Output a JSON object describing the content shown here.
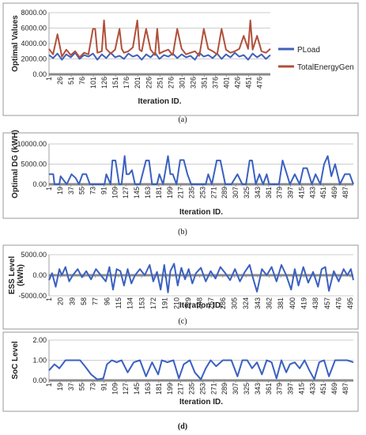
{
  "chart_data": [
    {
      "type": "line",
      "panel": "(a)",
      "caption": "(a)",
      "ylabel": "Optimal Values",
      "xlabel": "Iteration ID.",
      "ylim": [
        0,
        8000
      ],
      "yticks": [
        0,
        2000,
        4000,
        6000,
        8000
      ],
      "ytick_labels": [
        "0.00",
        "2000.00",
        "4000.00",
        "6000.00",
        "8000.00"
      ],
      "xlim": [
        1,
        500
      ],
      "xticks": [
        1,
        26,
        51,
        76,
        101,
        126,
        151,
        176,
        201,
        226,
        251,
        276,
        301,
        326,
        351,
        376,
        401,
        426,
        451,
        476
      ],
      "grid": true,
      "legend_position": "right",
      "series": [
        {
          "name": "PLoad",
          "color": "#4060b8",
          "x": [
            1,
            10,
            20,
            30,
            40,
            50,
            60,
            70,
            80,
            90,
            100,
            110,
            120,
            130,
            140,
            150,
            160,
            170,
            180,
            190,
            200,
            210,
            220,
            230,
            240,
            250,
            260,
            270,
            280,
            290,
            300,
            310,
            320,
            330,
            340,
            350,
            360,
            370,
            380,
            390,
            400,
            410,
            420,
            430,
            440,
            450,
            460,
            470,
            480,
            490,
            500
          ],
          "values": [
            2500,
            2100,
            2700,
            1900,
            2600,
            2200,
            2800,
            2000,
            2500,
            2300,
            2700,
            1900,
            2600,
            2100,
            2800,
            2200,
            2400,
            2000,
            2700,
            2300,
            2500,
            1900,
            2600,
            2200,
            2800,
            2000,
            2500,
            2300,
            2700,
            2100,
            2600,
            2200,
            2400,
            1900,
            2800,
            2300,
            2500,
            2100,
            2700,
            2000,
            2600,
            2200,
            2800,
            2300,
            2500,
            1900,
            2700,
            2200,
            2600,
            2000,
            2500
          ]
        },
        {
          "name": "TotalEnergyGen",
          "color": "#b0503a",
          "x": [
            1,
            10,
            20,
            30,
            40,
            50,
            60,
            70,
            80,
            90,
            100,
            105,
            110,
            120,
            125,
            130,
            140,
            150,
            160,
            165,
            170,
            180,
            190,
            200,
            205,
            210,
            220,
            230,
            240,
            245,
            250,
            260,
            270,
            280,
            290,
            300,
            310,
            320,
            330,
            340,
            350,
            360,
            370,
            380,
            390,
            400,
            410,
            420,
            430,
            440,
            450,
            455,
            460,
            470,
            480,
            490,
            500
          ],
          "values": [
            3300,
            2600,
            5200,
            2300,
            3200,
            2500,
            3000,
            2200,
            2800,
            2600,
            5900,
            5900,
            2800,
            3000,
            7000,
            3300,
            2700,
            3200,
            5900,
            3300,
            2800,
            3000,
            3500,
            7000,
            3200,
            3000,
            5900,
            3200,
            2500,
            5900,
            2700,
            3000,
            3200,
            2500,
            5900,
            3300,
            2600,
            2800,
            3000,
            2400,
            5900,
            3300,
            3000,
            2600,
            5900,
            3200,
            2800,
            3000,
            3300,
            5000,
            3300,
            7000,
            3200,
            5000,
            3000,
            2800,
            3300
          ]
        }
      ]
    },
    {
      "type": "line",
      "panel": "(b)",
      "caption": "(b)",
      "ylabel": "Optimal DG (kWH)",
      "xlabel": "Iteration ID.",
      "ylim": [
        0,
        10000
      ],
      "yticks": [
        0,
        5000,
        10000
      ],
      "ytick_labels": [
        "0.00",
        "5000.00",
        "10000.00"
      ],
      "xlim": [
        1,
        500
      ],
      "xticks": [
        1,
        19,
        37,
        55,
        73,
        91,
        109,
        127,
        145,
        163,
        181,
        199,
        217,
        235,
        253,
        271,
        289,
        307,
        325,
        343,
        361,
        379,
        397,
        415,
        433,
        451,
        469,
        487
      ],
      "grid": true,
      "series": [
        {
          "name": "",
          "color": "#3a60c0",
          "x": [
            1,
            8,
            10,
            18,
            20,
            30,
            38,
            45,
            50,
            56,
            62,
            68,
            74,
            80,
            92,
            95,
            102,
            105,
            110,
            116,
            120,
            125,
            128,
            132,
            137,
            142,
            150,
            160,
            165,
            170,
            178,
            182,
            188,
            196,
            200,
            204,
            210,
            216,
            222,
            228,
            234,
            240,
            250,
            258,
            262,
            268,
            276,
            282,
            290,
            300,
            310,
            318,
            324,
            330,
            334,
            340,
            346,
            352,
            358,
            362,
            368,
            378,
            384,
            390,
            396,
            404,
            412,
            418,
            424,
            432,
            438,
            446,
            452,
            458,
            464,
            470,
            478,
            486,
            494,
            500
          ],
          "values": [
            2500,
            2500,
            0,
            0,
            2000,
            0,
            2500,
            1500,
            0,
            2500,
            2500,
            0,
            0,
            0,
            0,
            2500,
            0,
            5900,
            5900,
            0,
            0,
            7000,
            2500,
            2500,
            3500,
            0,
            0,
            5900,
            5900,
            0,
            0,
            2500,
            0,
            7000,
            2500,
            2500,
            0,
            6000,
            6000,
            2500,
            0,
            0,
            0,
            0,
            2500,
            0,
            5900,
            5900,
            0,
            0,
            2500,
            0,
            0,
            5900,
            5900,
            0,
            2500,
            0,
            2500,
            0,
            0,
            0,
            5900,
            3000,
            0,
            2500,
            0,
            4000,
            4000,
            0,
            2500,
            0,
            5000,
            7000,
            2000,
            5000,
            0,
            2500,
            2500,
            0
          ]
        }
      ]
    },
    {
      "type": "line",
      "panel": "(c)",
      "caption": "(c)",
      "ylabel": "ESS Level (kWh)",
      "xlabel": "Iteration ID.",
      "ylim": [
        -5000,
        5000
      ],
      "yticks": [
        -5000,
        0,
        5000
      ],
      "ytick_labels": [
        "-5000.00",
        "0.00",
        "5000.00"
      ],
      "xlim": [
        1,
        500
      ],
      "xticks": [
        1,
        20,
        39,
        58,
        77,
        96,
        115,
        134,
        153,
        172,
        191,
        210,
        229,
        248,
        267,
        286,
        305,
        324,
        343,
        362,
        381,
        400,
        419,
        438,
        457,
        476,
        495
      ],
      "grid": true,
      "series": [
        {
          "name": "",
          "color": "#3a60c0",
          "x": [
            1,
            6,
            12,
            18,
            22,
            28,
            34,
            40,
            48,
            55,
            62,
            70,
            78,
            86,
            94,
            100,
            106,
            112,
            118,
            124,
            130,
            136,
            142,
            150,
            158,
            166,
            172,
            178,
            184,
            190,
            196,
            200,
            206,
            212,
            218,
            224,
            230,
            236,
            242,
            250,
            258,
            266,
            274,
            282,
            290,
            298,
            306,
            314,
            322,
            330,
            336,
            342,
            350,
            358,
            366,
            374,
            382,
            390,
            398,
            404,
            410,
            418,
            426,
            434,
            442,
            448,
            454,
            460,
            468,
            476,
            484,
            490,
            496,
            500
          ],
          "values": [
            -1200,
            500,
            -2800,
            1500,
            0,
            2000,
            -1500,
            0,
            1500,
            -500,
            1000,
            -1000,
            1500,
            0,
            -1500,
            2000,
            -3500,
            1500,
            1000,
            -2500,
            1500,
            -2000,
            0,
            1500,
            0,
            2500,
            -1500,
            800,
            -3500,
            2500,
            -4200,
            1000,
            2800,
            -2500,
            1800,
            -1000,
            1500,
            -2000,
            500,
            1800,
            -1500,
            1000,
            -800,
            2000,
            500,
            -1200,
            1500,
            -1500,
            800,
            2500,
            -1000,
            -4000,
            1500,
            0,
            2000,
            -1500,
            2500,
            0,
            -3500,
            1500,
            -2500,
            2000,
            -1800,
            800,
            -2800,
            1500,
            2000,
            -3800,
            1000,
            -1500,
            1500,
            0,
            1500,
            -1200
          ]
        }
      ]
    },
    {
      "type": "line",
      "panel": "(d)",
      "caption": "(d)",
      "ylabel": "SoC Level",
      "xlabel": "Iteration ID.",
      "ylim": [
        0,
        2
      ],
      "yticks": [
        0,
        1,
        2
      ],
      "ytick_labels": [
        "0.00",
        "1.00",
        "2.00"
      ],
      "xlim": [
        1,
        500
      ],
      "xticks": [
        1,
        19,
        37,
        55,
        73,
        91,
        109,
        127,
        145,
        163,
        181,
        199,
        217,
        235,
        253,
        271,
        289,
        307,
        325,
        343,
        361,
        379,
        397,
        415,
        433,
        451,
        469,
        487
      ],
      "grid": true,
      "series": [
        {
          "name": "",
          "color": "#3a60c0",
          "x": [
            1,
            10,
            18,
            28,
            40,
            52,
            60,
            70,
            80,
            90,
            96,
            104,
            112,
            120,
            130,
            140,
            150,
            160,
            170,
            180,
            186,
            195,
            205,
            214,
            222,
            232,
            240,
            250,
            258,
            266,
            275,
            286,
            300,
            310,
            318,
            326,
            334,
            342,
            350,
            358,
            366,
            374,
            382,
            390,
            396,
            404,
            412,
            420,
            428,
            436,
            444,
            452,
            460,
            470,
            480,
            490,
            500
          ],
          "values": [
            0.5,
            0.8,
            0.6,
            1.0,
            1.0,
            1.0,
            0.7,
            0.3,
            0.05,
            0.1,
            0.8,
            1.0,
            0.9,
            1.0,
            0.4,
            0.9,
            1.0,
            0.2,
            0.9,
            0.3,
            1.0,
            0.9,
            1.0,
            0.1,
            0.8,
            1.0,
            0.4,
            0.05,
            0.6,
            1.0,
            0.7,
            1.0,
            1.0,
            0.2,
            1.0,
            1.0,
            0.6,
            0.9,
            0.3,
            1.0,
            0.9,
            0.1,
            1.0,
            0.4,
            0.8,
            0.9,
            0.6,
            1.0,
            0.5,
            0.05,
            0.9,
            1.0,
            0.2,
            1.0,
            1.0,
            1.0,
            0.9
          ]
        }
      ]
    }
  ]
}
